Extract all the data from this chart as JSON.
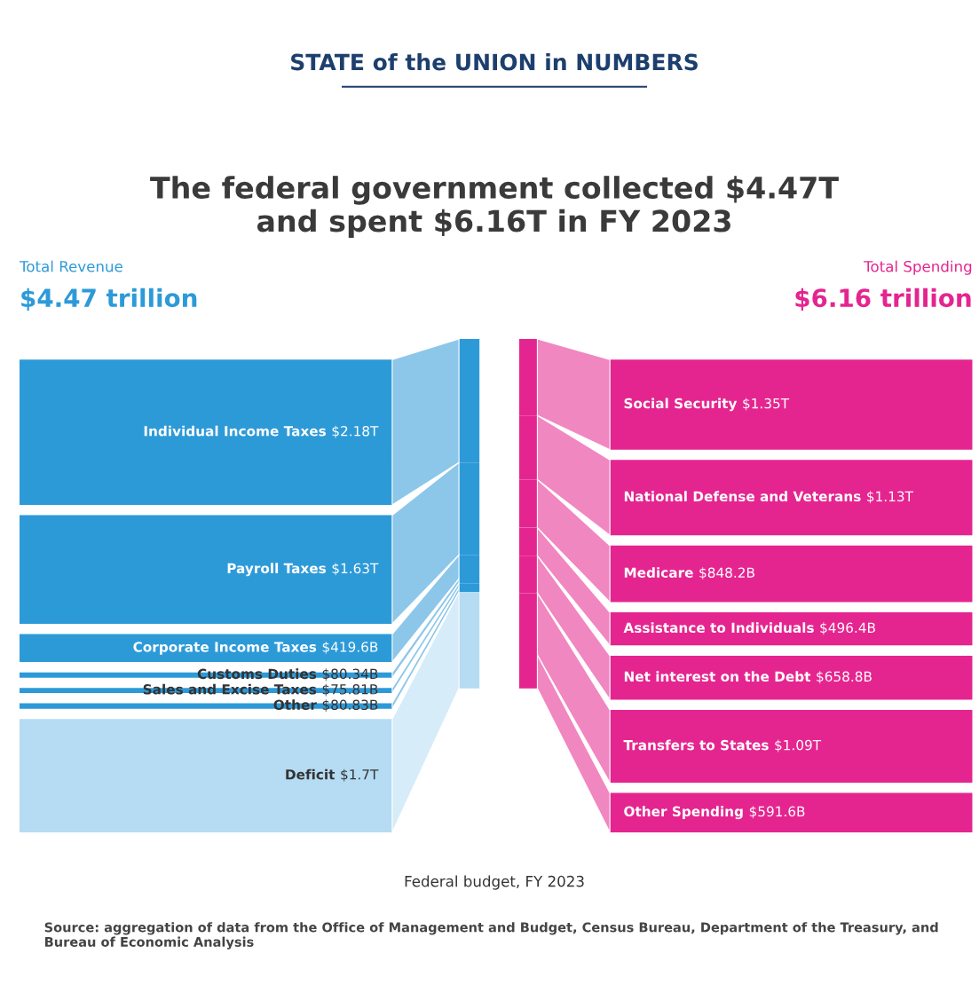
{
  "chart_data": [
    {
      "type": "other",
      "subtitle": "STATE of the UNION in NUMBERS",
      "title": "The federal government collected $4.47T\nand spent $6.16T in FY 2023",
      "annotations": [
        "Federal budget, FY 2023",
        "Source: aggregation of data from the Office of Management and Budget, Census Bureau, Department of the Treasury, and Bureau of Economic Analysis"
      ]
    },
    {
      "type": "other",
      "title": "Total Revenue",
      "subtitle": "$4.47 trillion",
      "categories": [
        "Individual Income Taxes",
        "Payroll Taxes",
        "Corporate Income Taxes",
        "Customs Duties",
        "Sales and Excise Taxes",
        "Other",
        "Deficit"
      ],
      "values": [
        2180000000000,
        1630000000000,
        419600000000,
        80340000000,
        75810000000,
        80830000000,
        1700000000000
      ],
      "value_labels": [
        "$2.18T",
        "$1.63T",
        "$419.6B",
        "$80.34B",
        "$75.81B",
        "$80.83B",
        "$1.7T"
      ],
      "colors": [
        "#2d9ad8",
        "#2d9ad8",
        "#2d9ad8",
        "#2d9ad8",
        "#2d9ad8",
        "#2d9ad8",
        "#b5dcf3"
      ]
    },
    {
      "type": "other",
      "title": "Total Spending",
      "subtitle": "$6.16 trillion",
      "categories": [
        "Social Security",
        "National Defense and Veterans",
        "Medicare",
        "Assistance to Individuals",
        "Net interest on the Debt",
        "Transfers to States",
        "Other Spending"
      ],
      "values": [
        1350000000000,
        1130000000000,
        848200000000,
        496400000000,
        658800000000,
        1090000000000,
        591600000000
      ],
      "value_labels": [
        "$1.35T",
        "$1.13T",
        "$848.2B",
        "$496.4B",
        "$658.8B",
        "$1.09T",
        "$591.6B"
      ],
      "colors": [
        "#e5258f",
        "#e5258f",
        "#e5258f",
        "#e5258f",
        "#e5258f",
        "#e5258f",
        "#e5258f"
      ]
    }
  ]
}
